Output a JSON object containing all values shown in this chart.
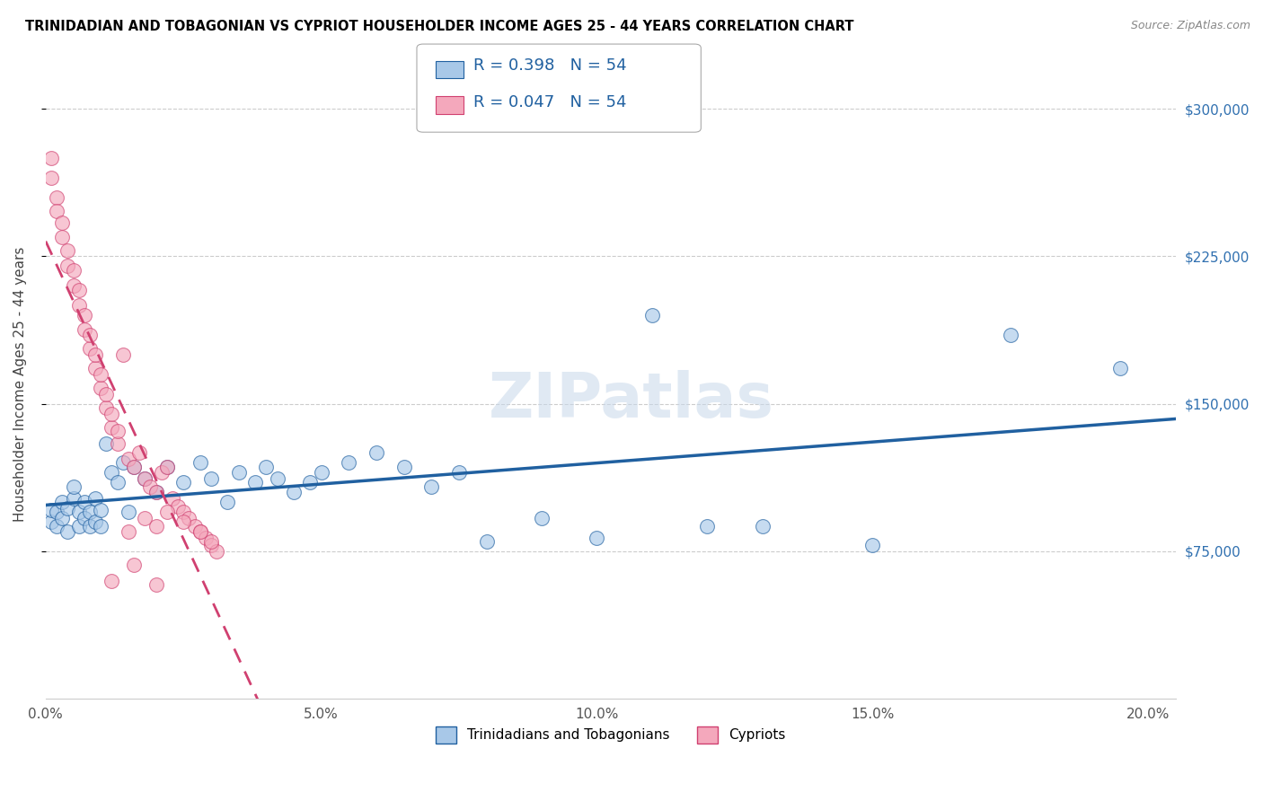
{
  "title": "TRINIDADIAN AND TOBAGONIAN VS CYPRIOT HOUSEHOLDER INCOME AGES 25 - 44 YEARS CORRELATION CHART",
  "source": "Source: ZipAtlas.com",
  "ylabel": "Householder Income Ages 25 - 44 years",
  "legend_label1": "Trinidadians and Tobagonians",
  "legend_label2": "Cypriots",
  "R1": 0.398,
  "N1": 54,
  "R2": 0.047,
  "N2": 54,
  "color_blue": "#a8c8e8",
  "color_pink": "#f4a8bc",
  "line_blue": "#2060a0",
  "line_pink": "#d04070",
  "xlim": [
    0.0,
    0.205
  ],
  "ylim": [
    0,
    320000
  ],
  "yticks": [
    75000,
    150000,
    225000,
    300000
  ],
  "xticks": [
    0.0,
    0.05,
    0.1,
    0.15,
    0.2
  ],
  "xticklabels": [
    "0.0%",
    "5.0%",
    "10.0%",
    "15.0%",
    "20.0%"
  ],
  "yticklabels": [
    "$75,000",
    "$150,000",
    "$225,000",
    "$300,000"
  ],
  "blue_x": [
    0.001,
    0.001,
    0.002,
    0.002,
    0.003,
    0.003,
    0.004,
    0.004,
    0.005,
    0.005,
    0.006,
    0.006,
    0.007,
    0.007,
    0.008,
    0.008,
    0.009,
    0.009,
    0.01,
    0.01,
    0.011,
    0.012,
    0.013,
    0.014,
    0.015,
    0.016,
    0.018,
    0.02,
    0.022,
    0.025,
    0.028,
    0.03,
    0.033,
    0.035,
    0.038,
    0.04,
    0.042,
    0.045,
    0.048,
    0.05,
    0.055,
    0.06,
    0.065,
    0.07,
    0.075,
    0.08,
    0.09,
    0.1,
    0.11,
    0.12,
    0.13,
    0.15,
    0.175,
    0.195
  ],
  "blue_y": [
    90000,
    96000,
    88000,
    95000,
    92000,
    100000,
    97000,
    85000,
    102000,
    108000,
    88000,
    95000,
    100000,
    92000,
    88000,
    95000,
    102000,
    90000,
    88000,
    96000,
    130000,
    115000,
    110000,
    120000,
    95000,
    118000,
    112000,
    105000,
    118000,
    110000,
    120000,
    112000,
    100000,
    115000,
    110000,
    118000,
    112000,
    105000,
    110000,
    115000,
    120000,
    125000,
    118000,
    108000,
    115000,
    80000,
    92000,
    82000,
    195000,
    88000,
    88000,
    78000,
    185000,
    168000
  ],
  "pink_x": [
    0.001,
    0.001,
    0.002,
    0.002,
    0.003,
    0.003,
    0.004,
    0.004,
    0.005,
    0.005,
    0.006,
    0.006,
    0.007,
    0.007,
    0.008,
    0.008,
    0.009,
    0.009,
    0.01,
    0.01,
    0.011,
    0.011,
    0.012,
    0.012,
    0.013,
    0.013,
    0.014,
    0.015,
    0.016,
    0.017,
    0.018,
    0.019,
    0.02,
    0.021,
    0.022,
    0.023,
    0.024,
    0.025,
    0.026,
    0.027,
    0.028,
    0.029,
    0.03,
    0.031,
    0.015,
    0.018,
    0.02,
    0.022,
    0.025,
    0.028,
    0.016,
    0.012,
    0.03,
    0.02
  ],
  "pink_y": [
    265000,
    275000,
    255000,
    248000,
    235000,
    242000,
    220000,
    228000,
    210000,
    218000,
    200000,
    208000,
    188000,
    195000,
    178000,
    185000,
    168000,
    175000,
    158000,
    165000,
    148000,
    155000,
    138000,
    145000,
    130000,
    136000,
    175000,
    122000,
    118000,
    125000,
    112000,
    108000,
    105000,
    115000,
    118000,
    102000,
    98000,
    95000,
    92000,
    88000,
    85000,
    82000,
    78000,
    75000,
    85000,
    92000,
    88000,
    95000,
    90000,
    85000,
    68000,
    60000,
    80000,
    58000
  ]
}
